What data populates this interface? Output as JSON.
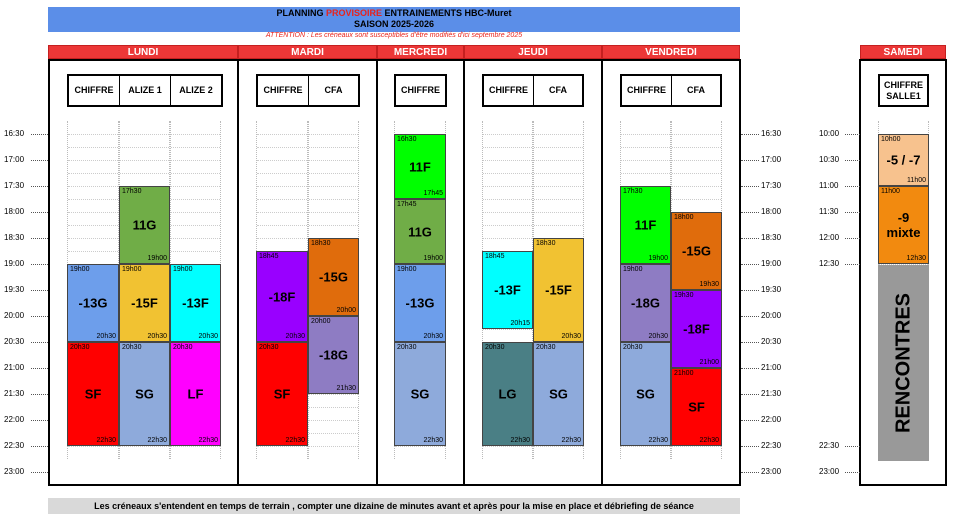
{
  "header": {
    "title_part1": "PLANNING ",
    "title_red": "PROVISOIRE",
    "title_part2": " ENTRAINEMENTS HBC-Muret",
    "season": "SAISON 2025-2026",
    "warning": "ATTENTION : Les créneaux sont susceptibles d'être modifiés d'ici septembre 2025"
  },
  "days": {
    "lundi": "LUNDI",
    "mardi": "MARDI",
    "mercredi": "MERCREDI",
    "jeudi": "JEUDI",
    "vendredi": "VENDREDI",
    "samedi": "SAMEDI"
  },
  "venues": {
    "lundi": [
      "CHIFFRE",
      "ALIZE 1",
      "ALIZE 2"
    ],
    "mardi": [
      "CHIFFRE",
      "CFA"
    ],
    "mercredi": [
      "CHIFFRE"
    ],
    "jeudi": [
      "CHIFFRE",
      "CFA"
    ],
    "vendredi": [
      "CHIFFRE",
      "CFA"
    ],
    "samedi": [
      "CHIFFRE SALLE1"
    ]
  },
  "weekday_times": [
    "16:30",
    "17:00",
    "17:30",
    "18:00",
    "18:30",
    "19:00",
    "19:30",
    "20:00",
    "20:30",
    "21:00",
    "21:30",
    "22:00",
    "22:30",
    "23:00"
  ],
  "saturday_times": [
    "10:00",
    "10:30",
    "11:00",
    "11:30",
    "12:00",
    "12:30",
    "22:30",
    "23:00"
  ],
  "sessions": [
    {
      "day": "lundi",
      "venue": "ALIZE 1",
      "start": "17h30",
      "end": "19h00",
      "label": "11G",
      "color": "#70ad47"
    },
    {
      "day": "lundi",
      "venue": "CHIFFRE",
      "start": "19h00",
      "end": "20h30",
      "label": "-13G",
      "color": "#6d9eeb"
    },
    {
      "day": "lundi",
      "venue": "ALIZE 1",
      "start": "19h00",
      "end": "20h30",
      "label": "-15F",
      "color": "#f1c232"
    },
    {
      "day": "lundi",
      "venue": "ALIZE 2",
      "start": "19h00",
      "end": "20h30",
      "label": "-13F",
      "color": "#00ffff"
    },
    {
      "day": "lundi",
      "venue": "CHIFFRE",
      "start": "20h30",
      "end": "22h30",
      "label": "SF",
      "color": "#ff0000"
    },
    {
      "day": "lundi",
      "venue": "ALIZE 1",
      "start": "20h30",
      "end": "22h30",
      "label": "SG",
      "color": "#8eaadb"
    },
    {
      "day": "lundi",
      "venue": "ALIZE 2",
      "start": "20h30",
      "end": "22h30",
      "label": "LF",
      "color": "#ff00ff"
    },
    {
      "day": "mardi",
      "venue": "CFA",
      "start": "18h30",
      "end": "20h00",
      "label": "-15G",
      "color": "#e06c0c"
    },
    {
      "day": "mardi",
      "venue": "CHIFFRE",
      "start": "18h45",
      "end": "20h30",
      "label": "-18F",
      "color": "#9900ff"
    },
    {
      "day": "mardi",
      "venue": "CFA",
      "start": "20h00",
      "end": "21h30",
      "label": "-18G",
      "color": "#8e7cc3"
    },
    {
      "day": "mardi",
      "venue": "CHIFFRE",
      "start": "20h30",
      "end": "22h30",
      "label": "SF",
      "color": "#ff0000"
    },
    {
      "day": "mercredi",
      "venue": "CHIFFRE",
      "start": "16h30",
      "end": "17h45",
      "label": "11F",
      "color": "#00ff00"
    },
    {
      "day": "mercredi",
      "venue": "CHIFFRE",
      "start": "17h45",
      "end": "19h00",
      "label": "11G",
      "color": "#70ad47"
    },
    {
      "day": "mercredi",
      "venue": "CHIFFRE",
      "start": "19h00",
      "end": "20h30",
      "label": "-13G",
      "color": "#6d9eeb"
    },
    {
      "day": "mercredi",
      "venue": "CHIFFRE",
      "start": "20h30",
      "end": "22h30",
      "label": "SG",
      "color": "#8eaadb"
    },
    {
      "day": "jeudi",
      "venue": "CFA",
      "start": "18h30",
      "end": "20h30",
      "label": "-15F",
      "color": "#f1c232"
    },
    {
      "day": "jeudi",
      "venue": "CHIFFRE",
      "start": "18h45",
      "end": "20h15",
      "label": "-13F",
      "color": "#00ffff"
    },
    {
      "day": "jeudi",
      "venue": "CHIFFRE",
      "start": "20h30",
      "end": "22h30",
      "label": "LG",
      "color": "#4a7f85"
    },
    {
      "day": "jeudi",
      "venue": "CFA",
      "start": "20h30",
      "end": "22h30",
      "label": "SG",
      "color": "#8eaadb"
    },
    {
      "day": "vendredi",
      "venue": "CHIFFRE",
      "start": "17h30",
      "end": "19h00",
      "label": "11F",
      "color": "#00ff00"
    },
    {
      "day": "vendredi",
      "venue": "CFA",
      "start": "18h00",
      "end": "19h30",
      "label": "-15G",
      "color": "#e06c0c"
    },
    {
      "day": "vendredi",
      "venue": "CHIFFRE",
      "start": "19h00",
      "end": "20h30",
      "label": "-18G",
      "color": "#8e7cc3"
    },
    {
      "day": "vendredi",
      "venue": "CFA",
      "start": "19h30",
      "end": "21h00",
      "label": "-18F",
      "color": "#9900ff"
    },
    {
      "day": "vendredi",
      "venue": "CHIFFRE",
      "start": "20h30",
      "end": "22h30",
      "label": "SG",
      "color": "#8eaadb"
    },
    {
      "day": "vendredi",
      "venue": "CFA",
      "start": "21h00",
      "end": "22h30",
      "label": "SF",
      "color": "#ff0000"
    },
    {
      "day": "samedi",
      "venue": "CHIFFRE SALLE1",
      "start": "10h00",
      "end": "11h00",
      "label": "-5 / -7",
      "color": "#f7c28e"
    },
    {
      "day": "samedi",
      "venue": "CHIFFRE SALLE1",
      "start": "11h00",
      "end": "12h30",
      "label": "-9 mixte",
      "color": "#f28a0f"
    }
  ],
  "rencontres": "RENCONTRES",
  "footer": "Les créneaux s'entendent en temps de terrain , compter une dizaine de minutes avant et après pour la mise en place et débriefing de séance"
}
